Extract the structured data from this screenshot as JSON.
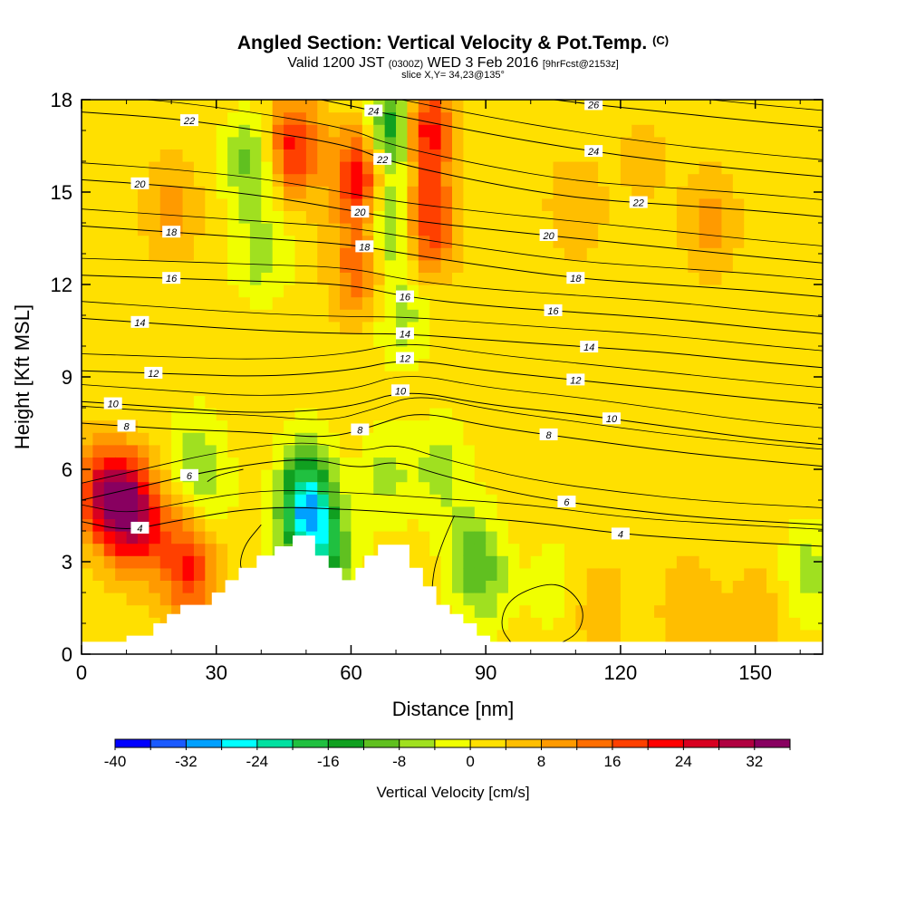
{
  "header": {
    "title_main": "Angled Section: Vertical Velocity & Pot.Temp.",
    "title_unit": "(C)",
    "valid_a": "Valid 1200 JST",
    "valid_utc": "(0300Z)",
    "valid_b": "WED 3 Feb 2016",
    "fcst": "[9hrFcst@2153z]",
    "slice": "slice X,Y= 34,23@135°"
  },
  "chart_data": {
    "type": "heatmap",
    "xlabel": "Distance [nm]",
    "ylabel": "Height [Kft MSL]",
    "xlim": [
      0,
      165
    ],
    "ylim": [
      0,
      18
    ],
    "x_ticks": [
      0,
      30,
      60,
      90,
      120,
      150
    ],
    "y_ticks": [
      0,
      3,
      6,
      9,
      12,
      15,
      18
    ],
    "colorbar": {
      "label": "Vertical Velocity [cm/s]",
      "min": -40,
      "max": 36,
      "step": 4,
      "tick_values": [
        -40,
        -32,
        -24,
        -16,
        -8,
        0,
        8,
        16,
        24,
        32
      ],
      "colors": [
        "#0000ff",
        "#1a5aff",
        "#00a0ff",
        "#00ffff",
        "#00e0a0",
        "#20c040",
        "#10a020",
        "#60c020",
        "#a0e020",
        "#f0ff00",
        "#ffe000",
        "#ffbe00",
        "#ff9a00",
        "#ff6e00",
        "#ff4000",
        "#ff0000",
        "#d80020",
        "#b00040",
        "#880060"
      ]
    },
    "terrain": [
      [
        0,
        0.4
      ],
      [
        10,
        0.4
      ],
      [
        10,
        0.6
      ],
      [
        16,
        0.6
      ],
      [
        16,
        1.0
      ],
      [
        19,
        1.0
      ],
      [
        19,
        1.3
      ],
      [
        22,
        1.3
      ],
      [
        22,
        1.6
      ],
      [
        29,
        1.6
      ],
      [
        29,
        2.0
      ],
      [
        32,
        2.0
      ],
      [
        32,
        2.4
      ],
      [
        35,
        2.4
      ],
      [
        35,
        2.8
      ],
      [
        39,
        2.8
      ],
      [
        39,
        3.2
      ],
      [
        43,
        3.2
      ],
      [
        43,
        3.5
      ],
      [
        47,
        3.5
      ],
      [
        47,
        3.85
      ],
      [
        52,
        3.85
      ],
      [
        52,
        3.2
      ],
      [
        55,
        3.2
      ],
      [
        55,
        2.8
      ],
      [
        58,
        2.8
      ],
      [
        58,
        2.4
      ],
      [
        61,
        2.4
      ],
      [
        61,
        2.8
      ],
      [
        63,
        2.8
      ],
      [
        63,
        3.2
      ],
      [
        66,
        3.2
      ],
      [
        66,
        3.55
      ],
      [
        73,
        3.55
      ],
      [
        73,
        2.8
      ],
      [
        76,
        2.8
      ],
      [
        76,
        2.2
      ],
      [
        79,
        2.2
      ],
      [
        79,
        1.6
      ],
      [
        82,
        1.6
      ],
      [
        82,
        1.3
      ],
      [
        85,
        1.3
      ],
      [
        85,
        1.0
      ],
      [
        88,
        1.0
      ],
      [
        88,
        0.6
      ],
      [
        91,
        0.6
      ],
      [
        91,
        0.4
      ],
      [
        165,
        0.4
      ]
    ],
    "features": [
      {
        "x": 10,
        "y": 4.8,
        "v": 24
      },
      {
        "x": 5,
        "y": 5.2,
        "v": 20
      },
      {
        "x": 15,
        "y": 4.0,
        "v": 12
      },
      {
        "x": 24,
        "y": 2.8,
        "v": 18
      },
      {
        "x": 76,
        "y": 17.0,
        "v": 26
      },
      {
        "x": 77,
        "y": 14.0,
        "v": 20
      },
      {
        "x": 62,
        "y": 15.5,
        "v": 22
      },
      {
        "x": 62,
        "y": 12.5,
        "v": 14
      },
      {
        "x": 47,
        "y": 16.5,
        "v": 20
      },
      {
        "x": 38,
        "y": 16.0,
        "v": -12
      },
      {
        "x": 40,
        "y": 13.0,
        "v": -8
      },
      {
        "x": 70,
        "y": 17.0,
        "v": -24
      },
      {
        "x": 69,
        "y": 14.0,
        "v": -16
      },
      {
        "x": 71,
        "y": 11.0,
        "v": -8
      },
      {
        "x": 50,
        "y": 4.5,
        "v": -26
      },
      {
        "x": 55,
        "y": 3.2,
        "v": -14
      },
      {
        "x": 50,
        "y": 6.0,
        "v": -8
      },
      {
        "x": 80,
        "y": 6.0,
        "v": -8
      },
      {
        "x": 87,
        "y": 3.2,
        "v": -10
      },
      {
        "x": 90,
        "y": 2.2,
        "v": -6
      },
      {
        "x": 162,
        "y": 2.6,
        "v": -8
      },
      {
        "x": 25,
        "y": 6.5,
        "v": -6
      },
      {
        "x": 28,
        "y": 5.3,
        "v": -5
      },
      {
        "x": 68,
        "y": 5.8,
        "v": -7
      },
      {
        "x": 105,
        "y": 2.2,
        "v": -4
      },
      {
        "x": 110,
        "y": 14.5,
        "v": 6
      },
      {
        "x": 140,
        "y": 14.0,
        "v": 8
      },
      {
        "x": 20,
        "y": 14.5,
        "v": 8
      },
      {
        "x": 125,
        "y": 16.0,
        "v": 4
      },
      {
        "x": 135,
        "y": 1.5,
        "v": 6
      },
      {
        "x": 115,
        "y": 1.5,
        "v": 5
      },
      {
        "x": 150,
        "y": 1.2,
        "v": 6
      }
    ],
    "theta_lines": [
      {
        "value": 4,
        "points": [
          [
            0,
            4.3
          ],
          [
            10,
            4.0
          ],
          [
            20,
            4.3
          ],
          [
            40,
            4.8
          ],
          [
            60,
            4.7
          ],
          [
            80,
            4.5
          ],
          [
            100,
            4.3
          ],
          [
            120,
            3.9
          ],
          [
            140,
            3.7
          ],
          [
            165,
            3.5
          ]
        ],
        "label_x": 13,
        "label2_x": 120
      },
      {
        "value": 6,
        "points": [
          [
            0,
            5.0
          ],
          [
            15,
            5.5
          ],
          [
            30,
            6.0
          ],
          [
            50,
            6.4
          ],
          [
            62,
            6.0
          ],
          [
            70,
            6.3
          ],
          [
            80,
            5.8
          ],
          [
            100,
            5.1
          ],
          [
            120,
            4.7
          ],
          [
            140,
            4.4
          ],
          [
            165,
            4.2
          ]
        ],
        "label_x": 24,
        "label2_x": 108
      },
      {
        "value": 8,
        "points": [
          [
            0,
            7.5
          ],
          [
            20,
            7.3
          ],
          [
            40,
            7.2
          ],
          [
            55,
            7.0
          ],
          [
            65,
            7.4
          ],
          [
            75,
            7.9
          ],
          [
            90,
            7.4
          ],
          [
            110,
            7.0
          ],
          [
            130,
            6.6
          ],
          [
            150,
            6.3
          ],
          [
            165,
            6.1
          ]
        ],
        "label_x": 10,
        "label2_x": 62,
        "label3_x": 104
      },
      {
        "value": 10,
        "points": [
          [
            0,
            8.2
          ],
          [
            20,
            8.0
          ],
          [
            40,
            7.8
          ],
          [
            60,
            8.0
          ],
          [
            72,
            8.6
          ],
          [
            90,
            8.1
          ],
          [
            110,
            7.8
          ],
          [
            130,
            7.4
          ],
          [
            150,
            7.0
          ],
          [
            165,
            6.8
          ]
        ],
        "label_x": 7,
        "label2_x": 71,
        "label3_x": 118
      },
      {
        "value": 12,
        "points": [
          [
            0,
            9.2
          ],
          [
            20,
            9.1
          ],
          [
            40,
            9.0
          ],
          [
            60,
            9.2
          ],
          [
            72,
            9.6
          ],
          [
            90,
            9.2
          ],
          [
            110,
            8.9
          ],
          [
            130,
            8.6
          ],
          [
            150,
            8.3
          ],
          [
            165,
            8.1
          ]
        ],
        "label_x": 16,
        "label2_x": 72,
        "label3_x": 110
      },
      {
        "value": 14,
        "points": [
          [
            0,
            10.9
          ],
          [
            20,
            10.7
          ],
          [
            40,
            10.5
          ],
          [
            60,
            10.4
          ],
          [
            72,
            10.4
          ],
          [
            90,
            10.2
          ],
          [
            110,
            10.0
          ],
          [
            130,
            9.8
          ],
          [
            150,
            9.5
          ],
          [
            165,
            9.3
          ]
        ],
        "label_x": 13,
        "label2_x": 72,
        "label3_x": 113
      },
      {
        "value": 16,
        "points": [
          [
            0,
            12.3
          ],
          [
            20,
            12.2
          ],
          [
            40,
            12.1
          ],
          [
            60,
            12.0
          ],
          [
            72,
            11.6
          ],
          [
            90,
            11.3
          ],
          [
            110,
            11.1
          ],
          [
            130,
            10.9
          ],
          [
            150,
            10.6
          ],
          [
            165,
            10.4
          ]
        ],
        "label_x": 20,
        "label2_x": 72,
        "label3_x": 105
      },
      {
        "value": 18,
        "points": [
          [
            0,
            13.9
          ],
          [
            20,
            13.7
          ],
          [
            40,
            13.5
          ],
          [
            60,
            13.3
          ],
          [
            72,
            13.0
          ],
          [
            90,
            12.6
          ],
          [
            110,
            12.2
          ],
          [
            130,
            12.0
          ],
          [
            150,
            11.8
          ],
          [
            165,
            11.6
          ]
        ],
        "label_x": 20,
        "label2_x": 63,
        "label3_x": 110
      },
      {
        "value": 20,
        "points": [
          [
            0,
            15.4
          ],
          [
            20,
            15.2
          ],
          [
            40,
            14.9
          ],
          [
            60,
            14.4
          ],
          [
            72,
            14.1
          ],
          [
            90,
            13.8
          ],
          [
            110,
            13.5
          ],
          [
            130,
            13.2
          ],
          [
            150,
            12.9
          ],
          [
            165,
            12.7
          ]
        ],
        "label_x": 13,
        "label2_x": 62,
        "label3_x": 104
      },
      {
        "value": 22,
        "points": [
          [
            0,
            17.6
          ],
          [
            20,
            17.4
          ],
          [
            40,
            17.0
          ],
          [
            60,
            16.5
          ],
          [
            68,
            16.0
          ],
          [
            90,
            15.3
          ],
          [
            110,
            14.8
          ],
          [
            130,
            14.6
          ],
          [
            150,
            14.4
          ],
          [
            165,
            14.2
          ]
        ],
        "label_x": 24,
        "label2_x": 67,
        "label3_x": 124
      },
      {
        "value": 24,
        "points": [
          [
            40,
            18.4
          ],
          [
            60,
            17.8
          ],
          [
            66,
            17.6
          ],
          [
            90,
            16.9
          ],
          [
            110,
            16.4
          ],
          [
            130,
            16.0
          ],
          [
            150,
            15.7
          ],
          [
            165,
            15.5
          ]
        ],
        "label_x": 65,
        "label2_x": 114
      },
      {
        "value": 26,
        "points": [
          [
            90,
            18.3
          ],
          [
            110,
            17.9
          ],
          [
            130,
            17.6
          ],
          [
            150,
            17.3
          ],
          [
            165,
            17.1
          ]
        ],
        "label_x": 114
      }
    ],
    "zero_lines": [
      [
        [
          40,
          4.2
        ],
        [
          36,
          3.5
        ],
        [
          35,
          2.7
        ],
        [
          39,
          2.4
        ]
      ],
      [
        [
          83,
          4.5
        ],
        [
          80,
          3.5
        ],
        [
          78,
          2.5
        ],
        [
          78,
          1.0
        ]
      ],
      [
        [
          96,
          0.3
        ],
        [
          93,
          0.9
        ],
        [
          95,
          1.8
        ],
        [
          103,
          2.3
        ],
        [
          108,
          2.2
        ],
        [
          112,
          1.5
        ],
        [
          111,
          0.7
        ],
        [
          106,
          0.3
        ]
      ],
      [
        [
          28,
          5.6
        ],
        [
          30,
          5.8
        ],
        [
          36,
          6.0
        ]
      ]
    ]
  }
}
